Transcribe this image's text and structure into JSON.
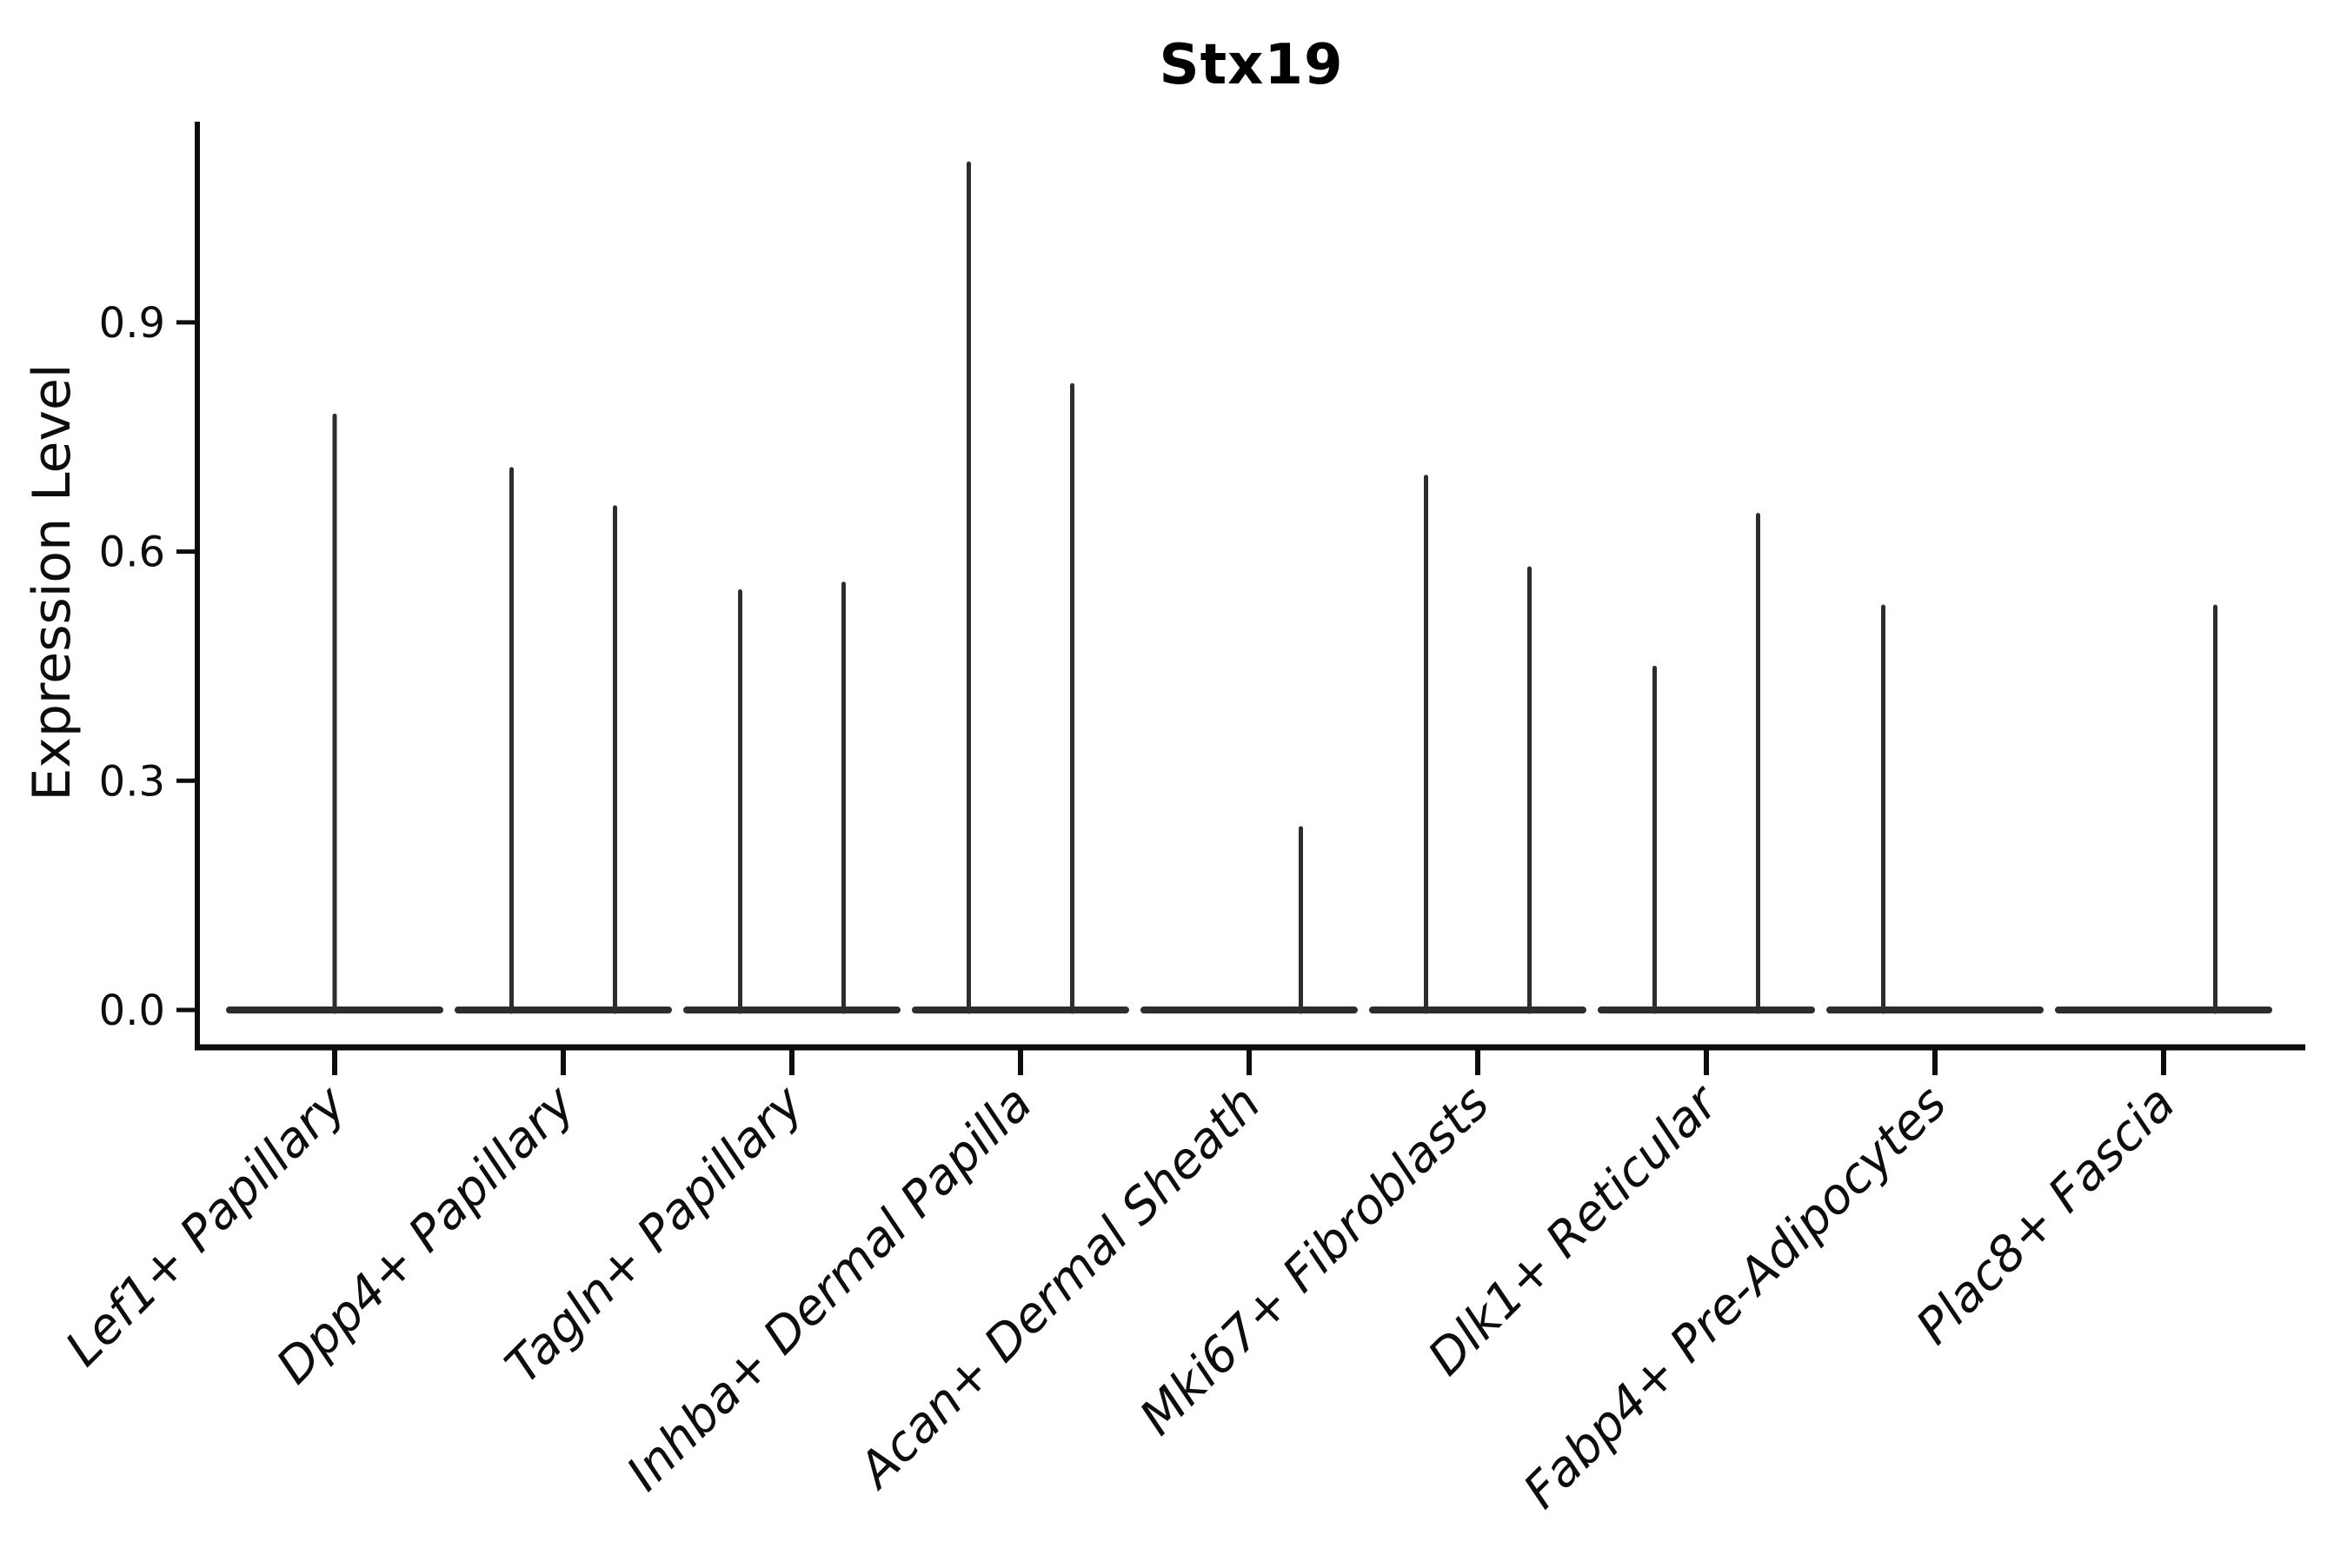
{
  "chart_data": {
    "type": "violin",
    "title": "Stx19",
    "xlabel": "",
    "ylabel": "Expression Level",
    "ytick_labels": [
      "0.0",
      "0.3",
      "0.6",
      "0.9"
    ],
    "ytick_values": [
      0.0,
      0.3,
      0.6,
      0.9
    ],
    "ylim": [
      0,
      1.163
    ],
    "grid": false,
    "legend": "none",
    "axis_color": "#0d0d0d",
    "violin_color": "#2d2d2d",
    "categories": [
      "Lef1+ Papillary",
      "Dpp4+ Papillary",
      "Tagln+ Papillary",
      "Inhba+ Dermal Papilla",
      "Acan+ Dermal Sheath",
      "Mki67+ Fibroblasts",
      "Dlk1+ Reticular",
      "Fabp4+ Pre-Adipocytes",
      "Plac8+ Fascia"
    ],
    "violins": [
      {
        "category": "Lef1+ Papillary",
        "baseline": 0.0,
        "spikes": [
          {
            "side": "center",
            "max": 0.78
          }
        ]
      },
      {
        "category": "Dpp4+ Papillary",
        "baseline": 0.0,
        "spikes": [
          {
            "side": "left",
            "max": 0.71
          },
          {
            "side": "right",
            "max": 0.66
          }
        ]
      },
      {
        "category": "Tagln+ Papillary",
        "baseline": 0.0,
        "spikes": [
          {
            "side": "left",
            "max": 0.55
          },
          {
            "side": "right",
            "max": 0.56
          }
        ]
      },
      {
        "category": "Inhba+ Dermal Papilla",
        "baseline": 0.0,
        "spikes": [
          {
            "side": "left",
            "max": 1.11
          },
          {
            "side": "right",
            "max": 0.82
          }
        ]
      },
      {
        "category": "Acan+ Dermal Sheath",
        "baseline": 0.0,
        "spikes": [
          {
            "side": "right",
            "max": 0.24
          }
        ]
      },
      {
        "category": "Mki67+ Fibroblasts",
        "baseline": 0.0,
        "spikes": [
          {
            "side": "left",
            "max": 0.7
          },
          {
            "side": "right",
            "max": 0.58
          }
        ]
      },
      {
        "category": "Dlk1+ Reticular",
        "baseline": 0.0,
        "spikes": [
          {
            "side": "left",
            "max": 0.45
          },
          {
            "side": "right",
            "max": 0.65
          }
        ]
      },
      {
        "category": "Fabp4+ Pre-Adipocytes",
        "baseline": 0.0,
        "spikes": [
          {
            "side": "left",
            "max": 0.53
          }
        ]
      },
      {
        "category": "Plac8+ Fascia",
        "baseline": 0.0,
        "spikes": [
          {
            "side": "right",
            "max": 0.53
          }
        ]
      }
    ]
  }
}
